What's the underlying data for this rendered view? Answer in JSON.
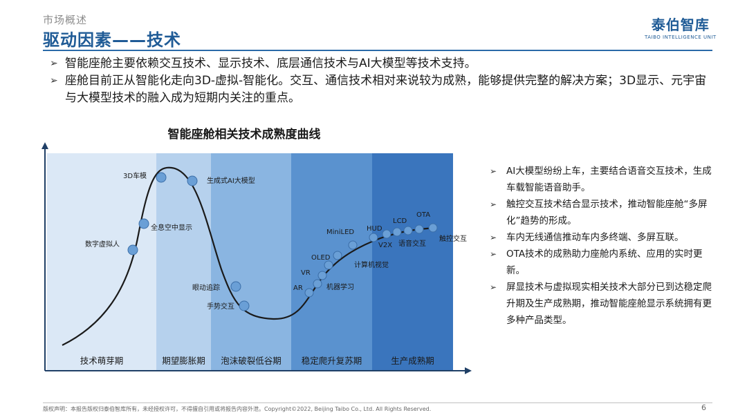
{
  "header": {
    "section": "市场概述",
    "title": "驱动因素——技术",
    "logo_name": "泰伯智库",
    "logo_sub": "TAIBO INTELLIGENCE UNIT"
  },
  "intro": [
    "智能座舱主要依赖交互技术、显示技术、底层通信技术与AI大模型等技术支持。",
    "座舱目前正从智能化走向3D-虚拟-智能化。交互、通信技术相对来说较为成熟，能够提供完整的解决方案；3D显示、元宇宙与大模型技术的融入成为短期内关注的重点。"
  ],
  "chart_data": {
    "type": "line",
    "title": "智能座舱相关技术成熟度曲线",
    "phases": [
      "技术萌芽期",
      "期望膨胀期",
      "泡沫破裂低谷期",
      "稳定爬升复苏期",
      "生产成熟期"
    ],
    "phase_colors": [
      "#dbe8f6",
      "#b6d1ed",
      "#8ab5e1",
      "#5a92cf",
      "#3a75bd"
    ],
    "curve_color": "#1a1a1a",
    "point_color": "#6a9fd6",
    "points": [
      {
        "label": "数字虚拟人"
      },
      {
        "label": "全息空中显示"
      },
      {
        "label": "3D车模"
      },
      {
        "label": "生成式AI大模型"
      },
      {
        "label": "眼动追踪"
      },
      {
        "label": "手势交互"
      },
      {
        "label": "AR"
      },
      {
        "label": "机器学习"
      },
      {
        "label": "VR"
      },
      {
        "label": "OLED"
      },
      {
        "label": "计算机视觉"
      },
      {
        "label": "MiniLED"
      },
      {
        "label": "HUD"
      },
      {
        "label": "V2X"
      },
      {
        "label": "LCD"
      },
      {
        "label": "语音交互"
      },
      {
        "label": "OTA"
      },
      {
        "label": "触控交互"
      }
    ]
  },
  "notes": [
    "AI大模型纷纷上车，主要结合语音交互技术，生成车载智能语音助手。",
    "触控交互技术结合显示技术，推动智能座舱“多屏化”趋势的形成。",
    "车内无线通信推动车内多终端、多屏互联。",
    "OTA技术的成熟助力座舱内系统、应用的实时更新。",
    "屏显技术与虚拟现实相关技术大部分已到达稳定爬升期及生产成熟期，推动智能座舱显示系统拥有更多种产品类型。"
  ],
  "footer": {
    "copyright": "版权声明：本报告版权归泰伯智库所有，未经授权许可，不得擅自引用或将报告内容外泄。Copyright©2022, Beijing Taibo Co., Ltd. All Rights Reserved.",
    "page_number": "6"
  }
}
